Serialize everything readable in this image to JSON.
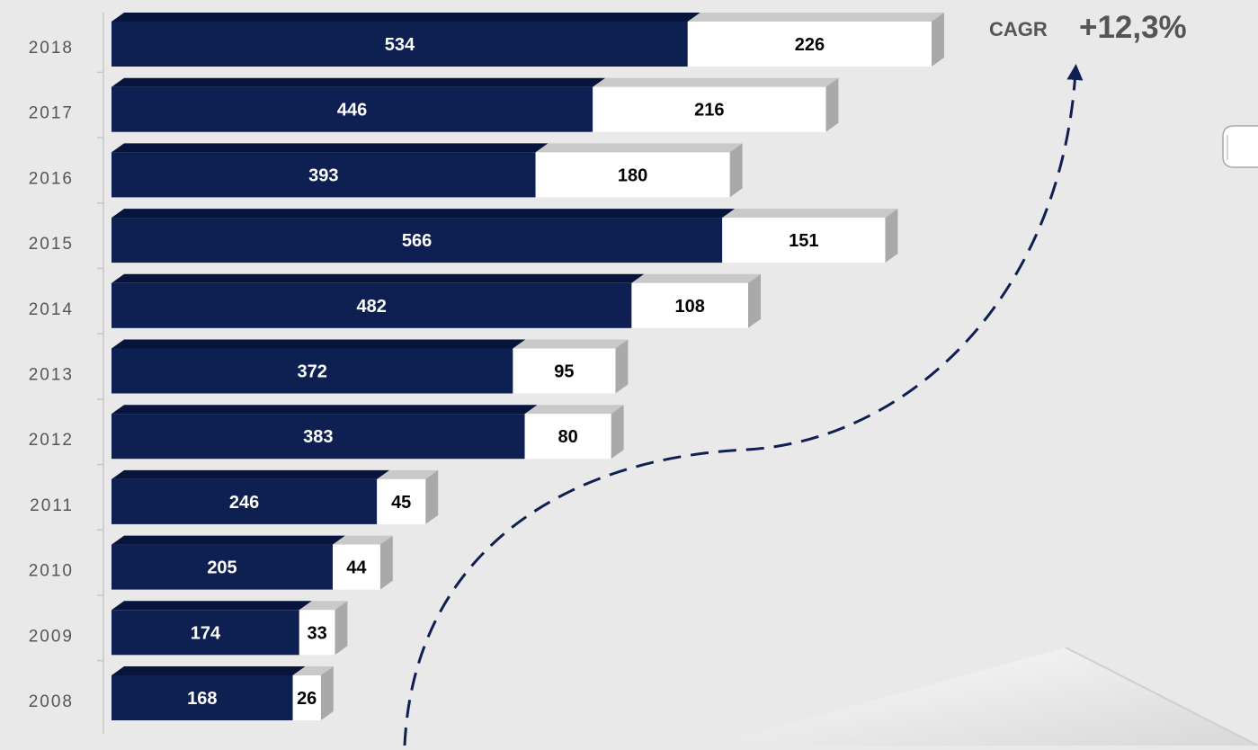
{
  "chart_data": {
    "type": "bar",
    "orientation": "horizontal",
    "stacked": true,
    "categories": [
      "2018",
      "2017",
      "2016",
      "2015",
      "2014",
      "2013",
      "2012",
      "2011",
      "2010",
      "2009",
      "2008"
    ],
    "series": [
      {
        "values": [
          534,
          446,
          393,
          566,
          482,
          372,
          383,
          246,
          205,
          174,
          168
        ]
      },
      {
        "values": [
          226,
          216,
          180,
          151,
          108,
          95,
          80,
          45,
          44,
          33,
          26
        ]
      }
    ],
    "annotation": {
      "label": "CAGR",
      "value": "+12,3%"
    },
    "colors": {
      "series1": "#0e1f52",
      "series2": "#ffffff",
      "side": "#a9a9a9",
      "top": "#c9c9c9",
      "background": "#e9e9e9"
    }
  }
}
